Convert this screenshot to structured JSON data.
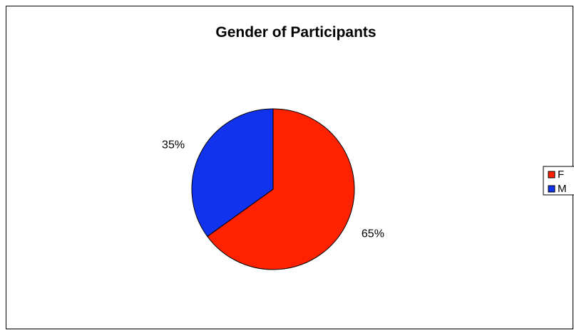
{
  "chart_data": {
    "type": "pie",
    "title": "Gender of Participants",
    "categories": [
      "F",
      "M"
    ],
    "values": [
      65,
      35
    ],
    "labels": [
      "65%",
      "35%"
    ],
    "colors": [
      "#ff2200",
      "#1133ee"
    ],
    "legend": {
      "position": "right",
      "entries": [
        "F",
        "M"
      ]
    }
  }
}
